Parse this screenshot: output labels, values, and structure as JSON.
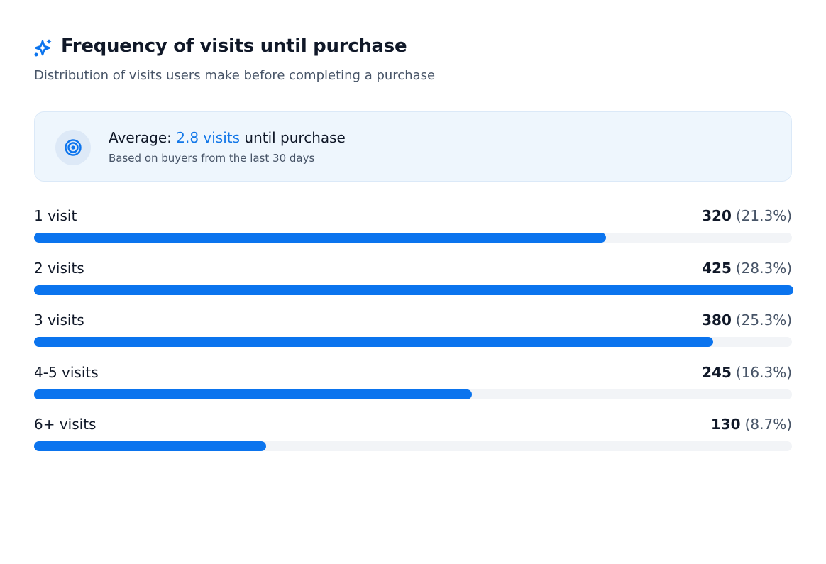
{
  "header": {
    "title": "Frequency of visits until purchase",
    "subtitle": "Distribution of visits users make before completing a purchase"
  },
  "summary": {
    "label": "Average:",
    "highlight": "2.8 visits",
    "suffix": "until purchase",
    "note": "Based on buyers from the last 30 days"
  },
  "rows": [
    {
      "label": "1 visit",
      "value": 320,
      "share": "(21.3%)"
    },
    {
      "label": "2 visits",
      "value": 425,
      "share": "(28.3%)"
    },
    {
      "label": "3 visits",
      "value": 380,
      "share": "(25.3%)"
    },
    {
      "label": "4-5 visits",
      "value": 245,
      "share": "(16.3%)"
    },
    {
      "label": "6+ visits",
      "value": 130,
      "share": "(8.7%)"
    }
  ]
}
